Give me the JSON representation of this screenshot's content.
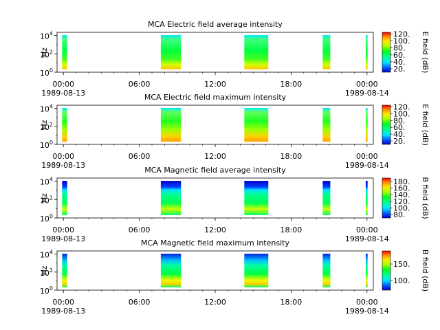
{
  "chart_data": [
    {
      "type": "heatmap",
      "title": "MCA  Electric field average intensity",
      "ylabel": "Hz",
      "yscale": "log",
      "yticks": [
        "10^0",
        "10^2",
        "10^4"
      ],
      "colorbar_label": "E field (dB)",
      "colorbar_ticks": [
        "20.",
        "40.",
        "60.",
        "80.",
        "100.",
        "120."
      ],
      "colorbar_range": [
        10,
        125
      ],
      "xticks": [
        "00:00",
        "06:00",
        "12:00",
        "18:00",
        "00:00"
      ],
      "xdates": [
        "1989-08-13",
        "1989-08-14"
      ],
      "data_intervals_hours": [
        [
          -0.1,
          0.3
        ],
        [
          7.7,
          9.3
        ],
        [
          14.3,
          16.2
        ],
        [
          20.5,
          21.1
        ],
        [
          23.9,
          24.05
        ]
      ]
    },
    {
      "type": "heatmap",
      "title": "MCA  Electric field maximum intensity",
      "ylabel": "Hz",
      "yscale": "log",
      "yticks": [
        "10^0",
        "10^2",
        "10^4"
      ],
      "colorbar_label": "E field (dB)",
      "colorbar_ticks": [
        "20.",
        "40.",
        "60.",
        "80.",
        "100.",
        "120."
      ],
      "colorbar_range": [
        10,
        125
      ],
      "xticks": [
        "00:00",
        "06:00",
        "12:00",
        "18:00",
        "00:00"
      ],
      "xdates": [
        "1989-08-13",
        "1989-08-14"
      ],
      "data_intervals_hours": [
        [
          -0.1,
          0.3
        ],
        [
          7.7,
          9.3
        ],
        [
          14.3,
          16.2
        ],
        [
          20.5,
          21.1
        ],
        [
          23.9,
          24.05
        ]
      ]
    },
    {
      "type": "heatmap",
      "title": "MCA  Magnetic field average intensity",
      "ylabel": "Hz",
      "yscale": "log",
      "yticks": [
        "10^0",
        "10^2",
        "10^4"
      ],
      "colorbar_label": "B field (dB)",
      "colorbar_ticks": [
        "80.",
        "100.",
        "120.",
        "140.",
        "160.",
        "180."
      ],
      "colorbar_range": [
        70,
        190
      ],
      "xticks": [
        "00:00",
        "06:00",
        "12:00",
        "18:00",
        "00:00"
      ],
      "xdates": [
        "1989-08-13",
        "1989-08-14"
      ],
      "data_intervals_hours": [
        [
          -0.1,
          0.3
        ],
        [
          7.7,
          9.3
        ],
        [
          14.3,
          16.2
        ],
        [
          20.5,
          21.1
        ],
        [
          23.9,
          24.05
        ]
      ]
    },
    {
      "type": "heatmap",
      "title": "MCA  Magnetic field maximum intensity",
      "ylabel": "Hz",
      "yscale": "log",
      "yticks": [
        "10^0",
        "10^2",
        "10^4"
      ],
      "colorbar_label": "B field (dB)",
      "colorbar_ticks": [
        "100.",
        "150."
      ],
      "colorbar_range": [
        70,
        190
      ],
      "xticks": [
        "00:00",
        "06:00",
        "12:00",
        "18:00",
        "00:00"
      ],
      "xdates": [
        "1989-08-13",
        "1989-08-14"
      ],
      "data_intervals_hours": [
        [
          -0.1,
          0.3
        ],
        [
          7.7,
          9.3
        ],
        [
          14.3,
          16.2
        ],
        [
          20.5,
          21.1
        ],
        [
          23.9,
          24.05
        ]
      ]
    }
  ]
}
